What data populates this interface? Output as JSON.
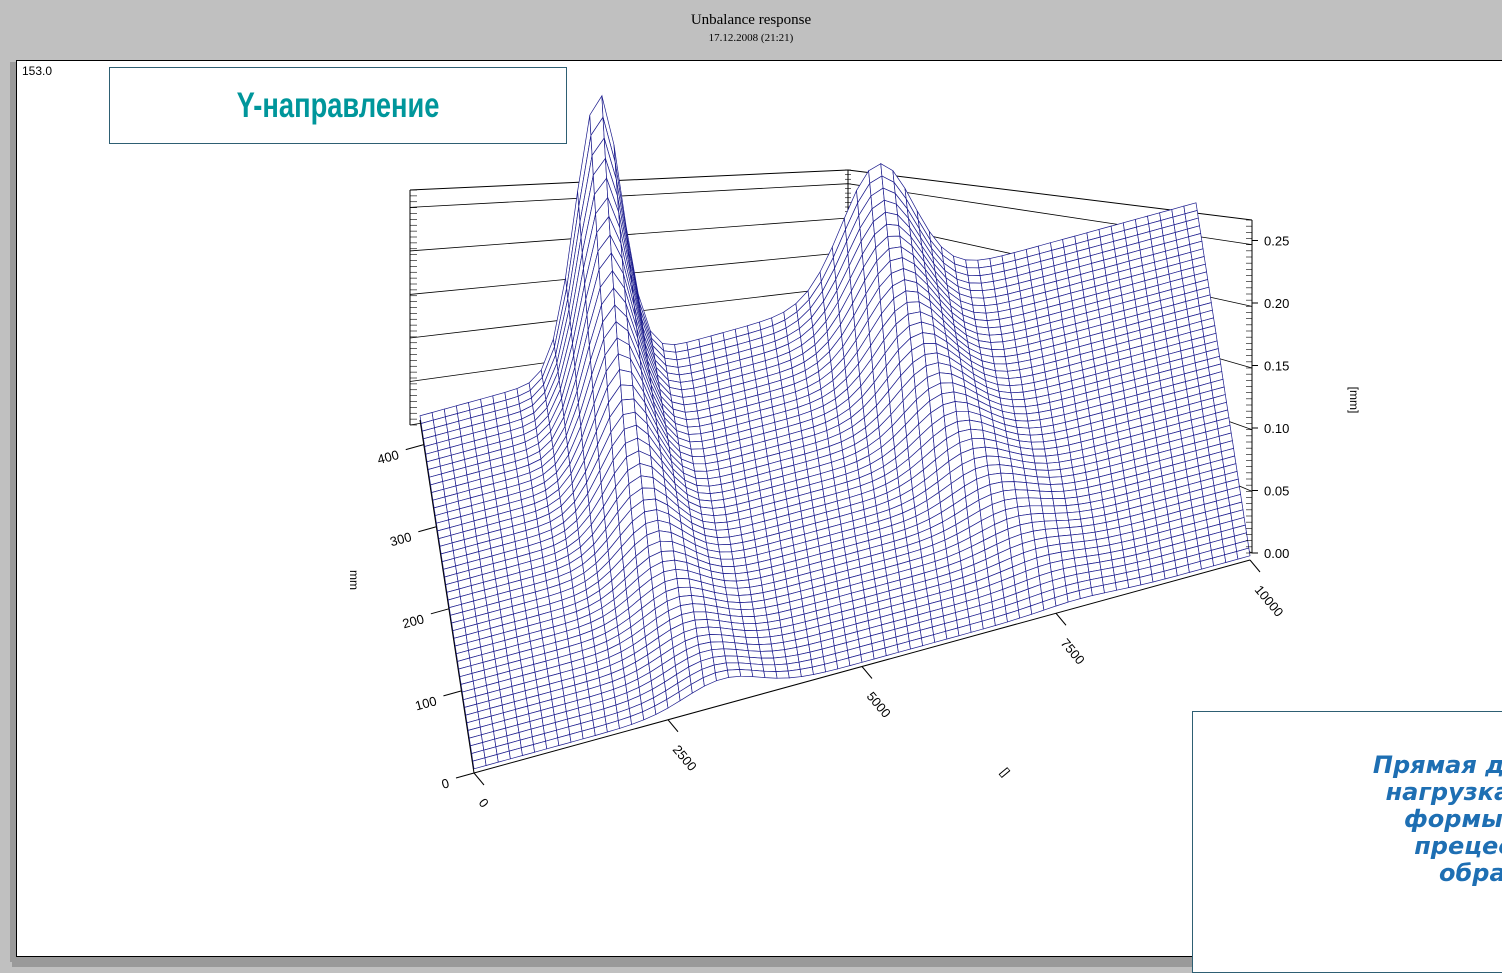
{
  "header": {
    "title": "Unbalance response",
    "date": "17.12.2008 (21:21)"
  },
  "corner_value": "153.0",
  "title_box": {
    "label": "Y-направление"
  },
  "annotation": {
    "lines": [
      "Прямая дисбаланс",
      "нагрузка возбуж",
      "формы как пр",
      "прецессий, т",
      "обратны."
    ]
  },
  "colors": {
    "mesh": "#1a1a8c",
    "title_box_text": "#00969b",
    "annotation_text": "#1e6fb3",
    "box_border": "#2e5f73"
  },
  "chart_data": {
    "type": "surface-3d",
    "x_axis": {
      "label": "[]",
      "ticks": [
        "0",
        "2500",
        "5000",
        "7500",
        "10000"
      ],
      "range": [
        0,
        10000
      ]
    },
    "y_axis": {
      "label": "mm",
      "ticks": [
        "0",
        "100",
        "200",
        "300",
        "400"
      ],
      "range": [
        0,
        430
      ]
    },
    "z_axis": {
      "label": "[mm]",
      "ticks": [
        "0.00",
        "0.05",
        "0.10",
        "0.15",
        "0.20",
        "0.25"
      ],
      "range": [
        0,
        0.27
      ]
    },
    "series": [
      {
        "description": "first resonance ridge",
        "peak_x": 2300,
        "peak_z": 0.26,
        "peak_y_range": [
          230,
          430
        ]
      },
      {
        "description": "second resonance ridge",
        "peak_x": 5900,
        "peak_z": 0.12
      }
    ]
  }
}
